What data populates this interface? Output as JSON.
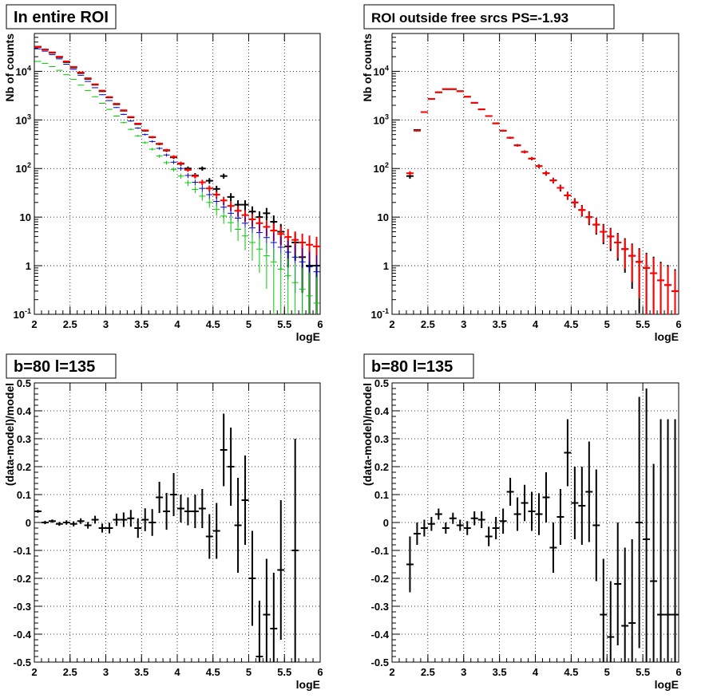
{
  "colors": {
    "data": "#000000",
    "model": "#ff0000",
    "comp_blue": "#0000cc",
    "comp_green": "#00cc00"
  },
  "chart_data": [
    {
      "type": "scatter",
      "title": "In entire ROI",
      "xlabel": "logE",
      "ylabel": "Nb of counts",
      "log_y": true,
      "xlim": [
        2,
        6
      ],
      "ylim": [
        0.1,
        60000
      ],
      "grid": true,
      "x_ticks": [
        "2",
        "2.5",
        "3",
        "3.5",
        "4",
        "4.5",
        "5",
        "5.5",
        "6"
      ],
      "y_ticks": [
        "10^-1",
        "1",
        "10",
        "10^2",
        "10^3",
        "10^4"
      ],
      "bin_width": 0.1,
      "x": [
        2.05,
        2.15,
        2.25,
        2.35,
        2.45,
        2.55,
        2.65,
        2.75,
        2.85,
        2.95,
        3.05,
        3.15,
        3.25,
        3.35,
        3.45,
        3.55,
        3.65,
        3.75,
        3.85,
        3.95,
        4.05,
        4.15,
        4.25,
        4.35,
        4.45,
        4.55,
        4.65,
        4.75,
        4.85,
        4.95,
        5.05,
        5.15,
        5.25,
        5.35,
        5.45,
        5.55,
        5.65,
        5.75,
        5.85,
        5.95
      ],
      "series": [
        {
          "role": "data",
          "color": "#000000",
          "values": [
            32000,
            28000,
            24000,
            19500,
            15500,
            12000,
            9200,
            7000,
            5300,
            3900,
            2900,
            2100,
            1550,
            1130,
            820,
            600,
            440,
            320,
            235,
            170,
            125,
            100,
            72,
            100,
            56,
            38,
            70,
            26,
            18,
            18,
            13,
            10,
            12,
            8,
            5,
            2.5,
            3,
            1.5,
            1,
            1
          ]
        },
        {
          "role": "model",
          "color": "#ff0000",
          "values": [
            31500,
            28000,
            24500,
            20000,
            16000,
            12300,
            9500,
            7200,
            5400,
            4000,
            2950,
            2150,
            1580,
            1150,
            840,
            610,
            445,
            325,
            240,
            175,
            128,
            94,
            70,
            52,
            39,
            29,
            22,
            17,
            13.5,
            11,
            9,
            7.5,
            6.3,
            5.3,
            4.5,
            3.9,
            3.4,
            3,
            2.7,
            2.5
          ]
        },
        {
          "role": "component",
          "color": "#0000cc",
          "values": [
            29000,
            26000,
            22000,
            18000,
            14000,
            11000,
            8300,
            6200,
            4600,
            3300,
            2500,
            1800,
            1300,
            950,
            680,
            500,
            360,
            260,
            190,
            135,
            100,
            72,
            52,
            39,
            29,
            21,
            16,
            12,
            9.5,
            7.5,
            6,
            4.8,
            3.8,
            3,
            2.4,
            1.9,
            1.5,
            1.2,
            0.95,
            0.75
          ]
        },
        {
          "role": "component",
          "color": "#00cc00",
          "values": [
            16000,
            14500,
            12500,
            10500,
            8500,
            6800,
            5200,
            4000,
            3000,
            2200,
            1650,
            1200,
            880,
            640,
            470,
            340,
            250,
            180,
            132,
            96,
            70,
            51,
            37,
            27,
            20,
            14.5,
            10.5,
            7.7,
            5.6,
            4.1,
            3,
            2.2,
            1.6,
            1.2,
            0.85,
            0.62,
            0.45,
            0.33,
            0.24,
            0.17
          ]
        }
      ]
    },
    {
      "type": "scatter",
      "title": "ROI outside free srcs PS=-1.93",
      "xlabel": "logE",
      "ylabel": "Nb of counts",
      "log_y": true,
      "xlim": [
        2,
        6
      ],
      "ylim": [
        0.1,
        60000
      ],
      "grid": true,
      "x_ticks": [
        "2",
        "2.5",
        "3",
        "3.5",
        "4",
        "4.5",
        "5",
        "5.5",
        "6"
      ],
      "y_ticks": [
        "10^-1",
        "1",
        "10",
        "10^2",
        "10^3",
        "10^4"
      ],
      "bin_width": 0.1,
      "x": [
        2.25,
        2.35,
        2.45,
        2.55,
        2.65,
        2.75,
        2.85,
        2.95,
        3.05,
        3.15,
        3.25,
        3.35,
        3.45,
        3.55,
        3.65,
        3.75,
        3.85,
        3.95,
        4.05,
        4.15,
        4.25,
        4.35,
        4.45,
        4.55,
        4.65,
        4.75,
        4.85,
        4.95,
        5.05,
        5.15,
        5.25,
        5.35,
        5.45,
        5.55,
        5.65,
        5.75,
        5.85,
        5.95
      ],
      "series": [
        {
          "role": "data",
          "color": "#000000",
          "values": [
            70,
            620,
            1450,
            2700,
            3700,
            4300,
            4300,
            3900,
            3000,
            2250,
            1650,
            1200,
            850,
            600,
            430,
            300,
            220,
            160,
            112,
            80,
            57,
            40,
            28,
            20,
            14,
            10,
            7,
            5,
            4,
            3,
            2.2,
            1.6,
            1.2,
            0.9,
            0.7,
            0.5,
            0.4,
            0.3
          ]
        },
        {
          "role": "model",
          "color": "#ff0000",
          "values": [
            80,
            600,
            1450,
            2700,
            3700,
            4300,
            4300,
            3900,
            3000,
            2250,
            1650,
            1200,
            850,
            600,
            430,
            300,
            220,
            160,
            112,
            80,
            57,
            40,
            28,
            20,
            14,
            10,
            7,
            5,
            4,
            3,
            2.2,
            1.6,
            1.2,
            0.9,
            0.7,
            0.5,
            0.4,
            0.3
          ]
        }
      ]
    },
    {
      "type": "scatter",
      "title": "b=80 l=135",
      "xlabel": "logE",
      "ylabel": "(data-model)/model",
      "xlim": [
        2,
        6
      ],
      "ylim": [
        -0.5,
        0.5
      ],
      "grid": true,
      "x_ticks": [
        "2",
        "2.5",
        "3",
        "3.5",
        "4",
        "4.5",
        "5",
        "5.5",
        "6"
      ],
      "y_ticks": [
        "-0.5",
        "-0.4",
        "-0.3",
        "-0.2",
        "-0.1",
        "0",
        "0.1",
        "0.2",
        "0.3",
        "0.4",
        "0.5"
      ],
      "bin_width": 0.1,
      "x": [
        2.05,
        2.15,
        2.25,
        2.35,
        2.45,
        2.55,
        2.65,
        2.75,
        2.85,
        2.95,
        3.05,
        3.15,
        3.25,
        3.35,
        3.45,
        3.55,
        3.65,
        3.75,
        3.85,
        3.95,
        4.05,
        4.15,
        4.25,
        4.35,
        4.45,
        4.55,
        4.65,
        4.75,
        4.85,
        4.95,
        5.05,
        5.15,
        5.25,
        5.35,
        5.45,
        5.65
      ],
      "series": [
        {
          "role": "data",
          "color": "#000000",
          "values": [
            0.04,
            0.0,
            0.005,
            -0.005,
            0.0,
            -0.005,
            0.005,
            -0.01,
            0.01,
            -0.02,
            -0.02,
            0.01,
            0.01,
            0.015,
            -0.02,
            0.01,
            0.0,
            0.09,
            0.04,
            0.1,
            0.05,
            0.04,
            0.04,
            0.05,
            -0.05,
            -0.03,
            0.26,
            0.2,
            -0.01,
            0.08,
            -0.2,
            -0.48,
            -0.33,
            -0.38,
            -0.17,
            -0.1
          ],
          "errors": [
            0.005,
            0.006,
            0.006,
            0.007,
            0.008,
            0.009,
            0.01,
            0.012,
            0.014,
            0.016,
            0.019,
            0.022,
            0.026,
            0.03,
            0.035,
            0.041,
            0.048,
            0.056,
            0.066,
            0.077,
            0.05,
            0.05,
            0.06,
            0.07,
            0.08,
            0.1,
            0.13,
            0.14,
            0.17,
            0.16,
            0.17,
            0.2,
            0.2,
            0.2,
            0.25,
            0.4
          ]
        }
      ]
    },
    {
      "type": "scatter",
      "title": "b=80 l=135",
      "xlabel": "logE",
      "ylabel": "(data-model)/model",
      "xlim": [
        2,
        6
      ],
      "ylim": [
        -0.5,
        0.5
      ],
      "grid": true,
      "x_ticks": [
        "2",
        "2.5",
        "3",
        "3.5",
        "4",
        "4.5",
        "5",
        "5.5",
        "6"
      ],
      "y_ticks": [
        "-0.5",
        "-0.4",
        "-0.3",
        "-0.2",
        "-0.1",
        "0",
        "0.1",
        "0.2",
        "0.3",
        "0.4",
        "0.5"
      ],
      "bin_width": 0.1,
      "x": [
        2.25,
        2.35,
        2.45,
        2.55,
        2.65,
        2.75,
        2.85,
        2.95,
        3.05,
        3.15,
        3.25,
        3.35,
        3.45,
        3.55,
        3.65,
        3.75,
        3.85,
        3.95,
        4.05,
        4.15,
        4.25,
        4.35,
        4.45,
        4.55,
        4.65,
        4.75,
        4.85,
        4.95,
        5.05,
        5.15,
        5.25,
        5.35,
        5.45,
        5.55,
        5.65,
        5.75,
        5.85,
        5.95
      ],
      "series": [
        {
          "role": "data",
          "color": "#000000",
          "values": [
            -0.15,
            -0.04,
            -0.02,
            -0.005,
            0.03,
            -0.02,
            0.015,
            -0.01,
            -0.02,
            0.015,
            0.01,
            -0.05,
            -0.02,
            0.005,
            0.11,
            0.03,
            0.07,
            0.04,
            0.03,
            0.09,
            -0.09,
            0.02,
            0.25,
            0.07,
            0.06,
            0.11,
            -0.01,
            -0.33,
            -0.41,
            -0.22,
            -0.37,
            -0.36,
            0.0,
            -0.06,
            -0.21,
            -0.33,
            -0.33,
            -0.33
          ],
          "errors": [
            0.1,
            0.04,
            0.03,
            0.025,
            0.02,
            0.02,
            0.02,
            0.02,
            0.025,
            0.025,
            0.03,
            0.035,
            0.04,
            0.045,
            0.05,
            0.06,
            0.065,
            0.07,
            0.075,
            0.09,
            0.09,
            0.1,
            0.12,
            0.13,
            0.14,
            0.18,
            0.2,
            0.2,
            0.2,
            0.22,
            0.28,
            0.3,
            0.45,
            0.54,
            0.42,
            0.7,
            0.7,
            0.7
          ]
        }
      ]
    }
  ]
}
